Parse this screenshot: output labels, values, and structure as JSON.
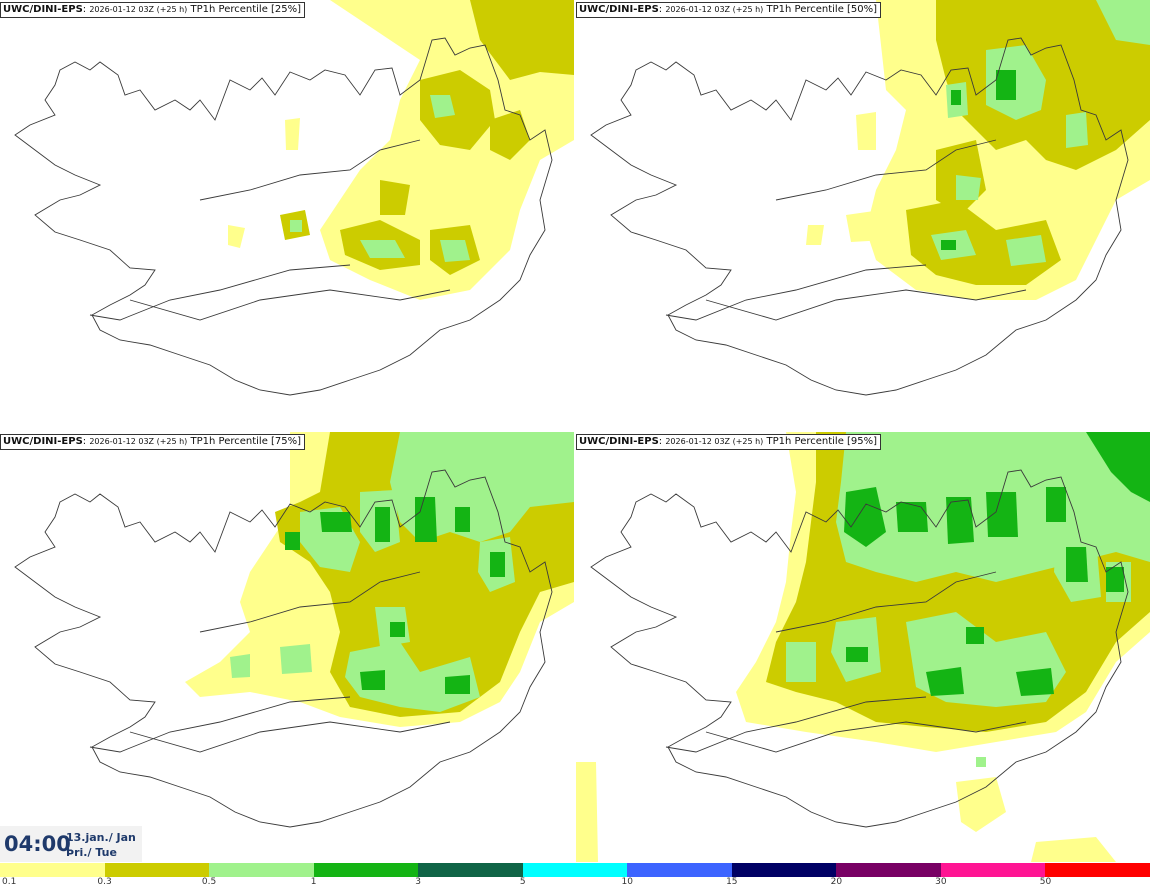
{
  "panels": [
    {
      "model": "UWC/DINI-EPS",
      "run": "2026-01-12 03Z (+25 h)",
      "product": "TP1h Percentile [25%]"
    },
    {
      "model": "UWC/DINI-EPS",
      "run": "2026-01-12 03Z (+25 h)",
      "product": "TP1h Percentile [50%]"
    },
    {
      "model": "UWC/DINI-EPS",
      "run": "2026-01-12 03Z (+25 h)",
      "product": "TP1h Percentile [75%]"
    },
    {
      "model": "UWC/DINI-EPS",
      "run": "2026-01-12 03Z (+25 h)",
      "product": "TP1h Percentile [95%]"
    }
  ],
  "valid_time": {
    "clock": "04:00",
    "date_line1": "13.jan./ Jan",
    "date_line2": "Þri./ Tue"
  },
  "colorbar": {
    "colors": [
      "#ffff8c",
      "#cccc00",
      "#a0f28c",
      "#14b414",
      "#0f6446",
      "#00ffff",
      "#3c64ff",
      "#000064",
      "#780064",
      "#ff1493",
      "#ff0000"
    ],
    "labels": [
      "0.1",
      "0.3",
      "0.5",
      "1",
      "3",
      "5",
      "10",
      "15",
      "20",
      "30",
      "50"
    ]
  },
  "legend_colors": {
    "light_yellow": "#ffff8c",
    "olive": "#cccc00",
    "light_green": "#a0f28c",
    "green": "#14b414"
  }
}
